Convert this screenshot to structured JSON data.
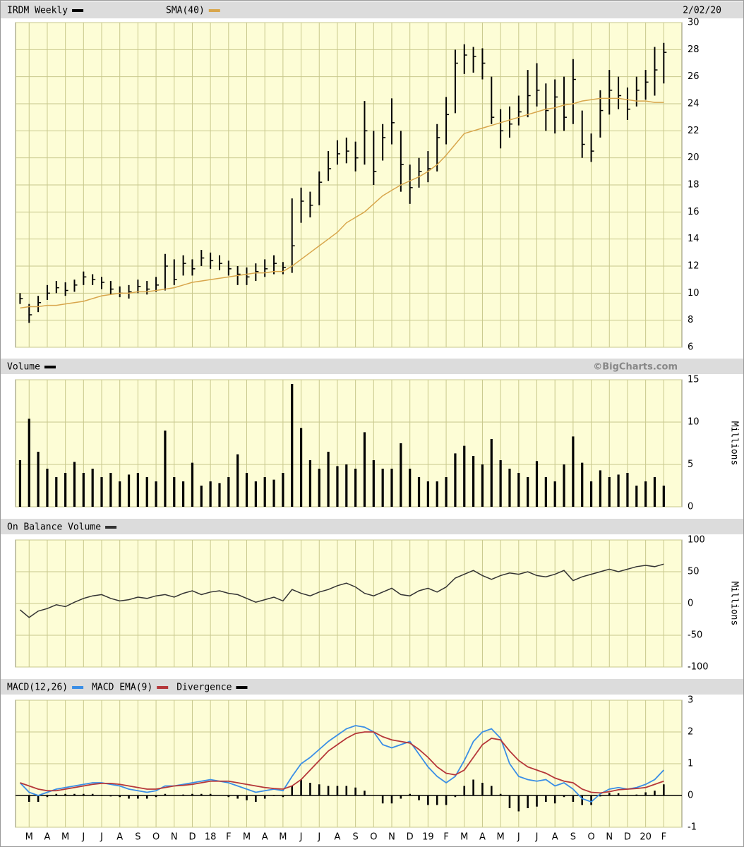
{
  "chart_data": [
    {
      "type": "ohlc",
      "date": "2/02/20",
      "ylim": [
        6,
        30
      ],
      "yticks": [
        6,
        8,
        10,
        12,
        14,
        16,
        18,
        20,
        22,
        24,
        26,
        28,
        30
      ],
      "grid": true,
      "series": [
        {
          "name": "IRDM Weekly",
          "color": "#000000",
          "high": [
            10.0,
            9.2,
            9.8,
            10.6,
            10.9,
            10.8,
            11.0,
            11.6,
            11.4,
            11.2,
            10.9,
            10.5,
            10.6,
            11.0,
            10.9,
            11.2,
            12.9,
            12.5,
            12.8,
            12.5,
            13.2,
            13.0,
            12.8,
            12.4,
            12.0,
            11.9,
            12.2,
            12.5,
            12.8,
            12.3,
            17.0,
            17.8,
            17.5,
            19.0,
            20.5,
            21.3,
            21.5,
            21.2,
            24.2,
            22.0,
            22.5,
            24.4,
            22.0,
            19.5,
            20.0,
            20.5,
            22.5,
            24.5,
            28.0,
            28.4,
            28.2,
            28.1,
            26.0,
            23.6,
            23.8,
            24.6,
            26.5,
            27.0,
            25.5,
            25.8,
            26.0,
            27.3,
            23.5,
            21.8,
            25.0,
            26.5,
            26.0,
            25.2,
            26.0,
            26.5,
            28.2,
            28.5
          ],
          "low": [
            9.2,
            7.8,
            8.6,
            9.5,
            10.0,
            9.8,
            10.1,
            10.6,
            10.6,
            10.3,
            9.9,
            9.7,
            9.6,
            10.0,
            9.9,
            10.1,
            10.2,
            10.6,
            11.3,
            11.3,
            12.0,
            11.8,
            11.7,
            11.3,
            10.6,
            10.6,
            10.9,
            11.2,
            11.4,
            11.4,
            11.5,
            15.2,
            15.6,
            16.5,
            18.3,
            19.5,
            19.6,
            19.0,
            19.5,
            18.0,
            19.8,
            21.0,
            17.5,
            16.6,
            17.8,
            18.2,
            19.0,
            21.0,
            23.3,
            26.2,
            26.3,
            25.8,
            22.5,
            20.7,
            21.5,
            22.4,
            23.0,
            23.8,
            22.0,
            21.8,
            22.0,
            22.5,
            20.0,
            19.7,
            21.5,
            23.2,
            23.6,
            22.8,
            23.8,
            24.3,
            24.6,
            25.5
          ],
          "close": [
            9.6,
            8.4,
            9.3,
            10.0,
            10.4,
            10.2,
            10.6,
            11.2,
            11.0,
            10.8,
            10.3,
            10.0,
            10.1,
            10.5,
            10.3,
            10.6,
            12.0,
            11.0,
            12.2,
            11.8,
            12.6,
            12.4,
            12.2,
            11.8,
            11.4,
            11.2,
            11.6,
            11.8,
            12.2,
            11.9,
            13.5,
            16.8,
            16.5,
            18.2,
            19.2,
            20.3,
            20.5,
            20.0,
            22.0,
            19.0,
            21.5,
            22.6,
            19.5,
            17.8,
            19.0,
            19.2,
            21.5,
            23.2,
            27.0,
            27.6,
            27.5,
            27.0,
            23.0,
            22.0,
            22.5,
            23.4,
            24.6,
            25.0,
            23.5,
            24.5,
            23.0,
            25.8,
            21.0,
            20.5,
            23.5,
            25.0,
            24.6,
            23.6,
            25.0,
            25.6,
            26.5,
            27.8
          ]
        },
        {
          "name": "SMA(40)",
          "color": "#d8a64c",
          "values": [
            8.9,
            9.0,
            9.0,
            9.1,
            9.1,
            9.2,
            9.3,
            9.4,
            9.6,
            9.8,
            9.9,
            10.0,
            10.0,
            10.1,
            10.1,
            10.2,
            10.3,
            10.4,
            10.6,
            10.8,
            10.9,
            11.0,
            11.1,
            11.2,
            11.3,
            11.4,
            11.5,
            11.5,
            11.6,
            11.6,
            12.0,
            12.5,
            13.0,
            13.5,
            14.0,
            14.5,
            15.2,
            15.6,
            16.0,
            16.6,
            17.2,
            17.6,
            18.0,
            18.3,
            18.6,
            19.0,
            19.5,
            20.2,
            21.0,
            21.8,
            22.0,
            22.2,
            22.4,
            22.6,
            22.8,
            23.0,
            23.2,
            23.4,
            23.6,
            23.7,
            23.9,
            24.0,
            24.2,
            24.3,
            24.4,
            24.4,
            24.4,
            24.3,
            24.2,
            24.2,
            24.1,
            24.1
          ]
        }
      ]
    },
    {
      "type": "bar",
      "watermark": "©BigCharts.com",
      "ylabel": "Millions",
      "ylim": [
        0,
        15
      ],
      "yticks": [
        0,
        5,
        10,
        15
      ],
      "grid": true,
      "series": [
        {
          "name": "Volume",
          "color": "#000000",
          "values": [
            5.5,
            10.4,
            6.5,
            4.5,
            3.5,
            4.0,
            5.3,
            4.0,
            4.5,
            3.5,
            4.0,
            3.0,
            3.8,
            4.0,
            3.5,
            3.0,
            9.0,
            3.5,
            3.0,
            5.2,
            2.5,
            3.0,
            2.8,
            3.5,
            6.2,
            4.0,
            3.0,
            3.5,
            3.2,
            4.0,
            14.5,
            9.3,
            5.5,
            4.5,
            6.5,
            4.8,
            5.0,
            4.5,
            8.8,
            5.5,
            4.5,
            4.5,
            7.5,
            4.5,
            3.5,
            3.0,
            3.0,
            3.5,
            6.3,
            7.2,
            6.0,
            5.0,
            8.0,
            5.5,
            4.5,
            4.0,
            3.5,
            5.4,
            3.5,
            3.0,
            5.0,
            8.3,
            5.2,
            3.0,
            4.3,
            3.5,
            3.8,
            4.0,
            2.5,
            3.0,
            3.5,
            2.5
          ]
        }
      ]
    },
    {
      "type": "line",
      "ylabel": "Millions",
      "ylim": [
        -100,
        100
      ],
      "yticks": [
        -100,
        -50,
        0,
        50,
        100
      ],
      "grid": true,
      "series": [
        {
          "name": "On Balance Volume",
          "color": "#333333",
          "values": [
            -10,
            -22,
            -12,
            -8,
            -2,
            -5,
            2,
            8,
            12,
            14,
            8,
            4,
            6,
            10,
            8,
            12,
            14,
            10,
            16,
            20,
            14,
            18,
            20,
            16,
            14,
            8,
            2,
            6,
            10,
            4,
            22,
            16,
            12,
            18,
            22,
            28,
            32,
            26,
            16,
            12,
            18,
            24,
            14,
            12,
            20,
            24,
            18,
            26,
            40,
            46,
            52,
            44,
            38,
            44,
            48,
            46,
            50,
            44,
            42,
            46,
            52,
            36,
            42,
            46,
            50,
            54,
            50,
            54,
            58,
            60,
            58,
            62
          ]
        }
      ]
    },
    {
      "type": "macd",
      "ylim": [
        -1,
        3
      ],
      "yticks": [
        -1,
        0,
        1,
        2,
        3
      ],
      "grid": true,
      "xlim": [
        -0.5,
        73
      ],
      "xticks": [
        {
          "value": 1,
          "label": "M"
        },
        {
          "value": 3,
          "label": "A"
        },
        {
          "value": 5,
          "label": "M"
        },
        {
          "value": 7,
          "label": "J"
        },
        {
          "value": 9,
          "label": "J"
        },
        {
          "value": 11,
          "label": "A"
        },
        {
          "value": 13,
          "label": "S"
        },
        {
          "value": 15,
          "label": "O"
        },
        {
          "value": 17,
          "label": "N"
        },
        {
          "value": 19,
          "label": "D"
        },
        {
          "value": 21,
          "label": "18"
        },
        {
          "value": 23,
          "label": "F"
        },
        {
          "value": 25,
          "label": "M"
        },
        {
          "value": 27,
          "label": "A"
        },
        {
          "value": 29,
          "label": "M"
        },
        {
          "value": 31,
          "label": "J"
        },
        {
          "value": 33,
          "label": "J"
        },
        {
          "value": 35,
          "label": "A"
        },
        {
          "value": 37,
          "label": "S"
        },
        {
          "value": 39,
          "label": "O"
        },
        {
          "value": 41,
          "label": "N"
        },
        {
          "value": 43,
          "label": "D"
        },
        {
          "value": 45,
          "label": "19"
        },
        {
          "value": 47,
          "label": "F"
        },
        {
          "value": 49,
          "label": "M"
        },
        {
          "value": 51,
          "label": "A"
        },
        {
          "value": 53,
          "label": "M"
        },
        {
          "value": 55,
          "label": "J"
        },
        {
          "value": 57,
          "label": "J"
        },
        {
          "value": 59,
          "label": "A"
        },
        {
          "value": 61,
          "label": "S"
        },
        {
          "value": 63,
          "label": "O"
        },
        {
          "value": 65,
          "label": "N"
        },
        {
          "value": 67,
          "label": "D"
        },
        {
          "value": 69,
          "label": "20"
        },
        {
          "value": 71,
          "label": "F"
        }
      ],
      "series": [
        {
          "name": "MACD(12,26)",
          "color": "#3a8ee6",
          "values": [
            0.4,
            0.1,
            0.0,
            0.1,
            0.2,
            0.25,
            0.3,
            0.35,
            0.4,
            0.4,
            0.35,
            0.3,
            0.2,
            0.15,
            0.1,
            0.15,
            0.3,
            0.3,
            0.35,
            0.4,
            0.45,
            0.5,
            0.45,
            0.4,
            0.3,
            0.2,
            0.1,
            0.15,
            0.2,
            0.15,
            0.6,
            1.0,
            1.2,
            1.45,
            1.7,
            1.9,
            2.1,
            2.2,
            2.15,
            2.0,
            1.6,
            1.5,
            1.6,
            1.7,
            1.3,
            0.9,
            0.6,
            0.4,
            0.6,
            1.1,
            1.7,
            2.0,
            2.1,
            1.8,
            1.0,
            0.6,
            0.5,
            0.45,
            0.5,
            0.3,
            0.4,
            0.2,
            -0.1,
            -0.2,
            0.05,
            0.2,
            0.25,
            0.2,
            0.25,
            0.35,
            0.5,
            0.8
          ]
        },
        {
          "name": "MACD EMA(9)",
          "color": "#b5373a",
          "values": [
            0.4,
            0.3,
            0.2,
            0.15,
            0.15,
            0.2,
            0.25,
            0.3,
            0.35,
            0.38,
            0.38,
            0.35,
            0.3,
            0.25,
            0.2,
            0.2,
            0.25,
            0.3,
            0.32,
            0.35,
            0.4,
            0.45,
            0.45,
            0.45,
            0.4,
            0.35,
            0.3,
            0.25,
            0.22,
            0.2,
            0.3,
            0.5,
            0.8,
            1.1,
            1.4,
            1.6,
            1.8,
            1.95,
            2.0,
            2.0,
            1.85,
            1.75,
            1.7,
            1.65,
            1.45,
            1.2,
            0.9,
            0.7,
            0.65,
            0.8,
            1.2,
            1.6,
            1.8,
            1.75,
            1.4,
            1.1,
            0.9,
            0.8,
            0.7,
            0.55,
            0.45,
            0.4,
            0.2,
            0.1,
            0.08,
            0.12,
            0.18,
            0.2,
            0.22,
            0.25,
            0.35,
            0.45
          ]
        },
        {
          "name": "Divergence",
          "color": "#000000",
          "values": [
            0.0,
            -0.2,
            -0.2,
            -0.05,
            0.05,
            0.05,
            0.05,
            0.05,
            0.05,
            0.02,
            -0.03,
            -0.05,
            -0.1,
            -0.1,
            -0.1,
            -0.05,
            0.05,
            0.0,
            0.03,
            0.05,
            0.05,
            0.05,
            0.0,
            -0.05,
            -0.1,
            -0.15,
            -0.2,
            -0.1,
            -0.02,
            -0.05,
            0.3,
            0.5,
            0.4,
            0.35,
            0.3,
            0.3,
            0.3,
            0.25,
            0.15,
            0.0,
            -0.25,
            -0.25,
            -0.1,
            0.05,
            -0.15,
            -0.3,
            -0.3,
            -0.3,
            -0.05,
            0.3,
            0.5,
            0.4,
            0.3,
            0.05,
            -0.4,
            -0.5,
            -0.4,
            -0.35,
            -0.2,
            -0.25,
            -0.05,
            -0.2,
            -0.3,
            -0.3,
            -0.03,
            0.08,
            0.07,
            0.0,
            0.03,
            0.1,
            0.15,
            0.35
          ]
        }
      ]
    }
  ]
}
